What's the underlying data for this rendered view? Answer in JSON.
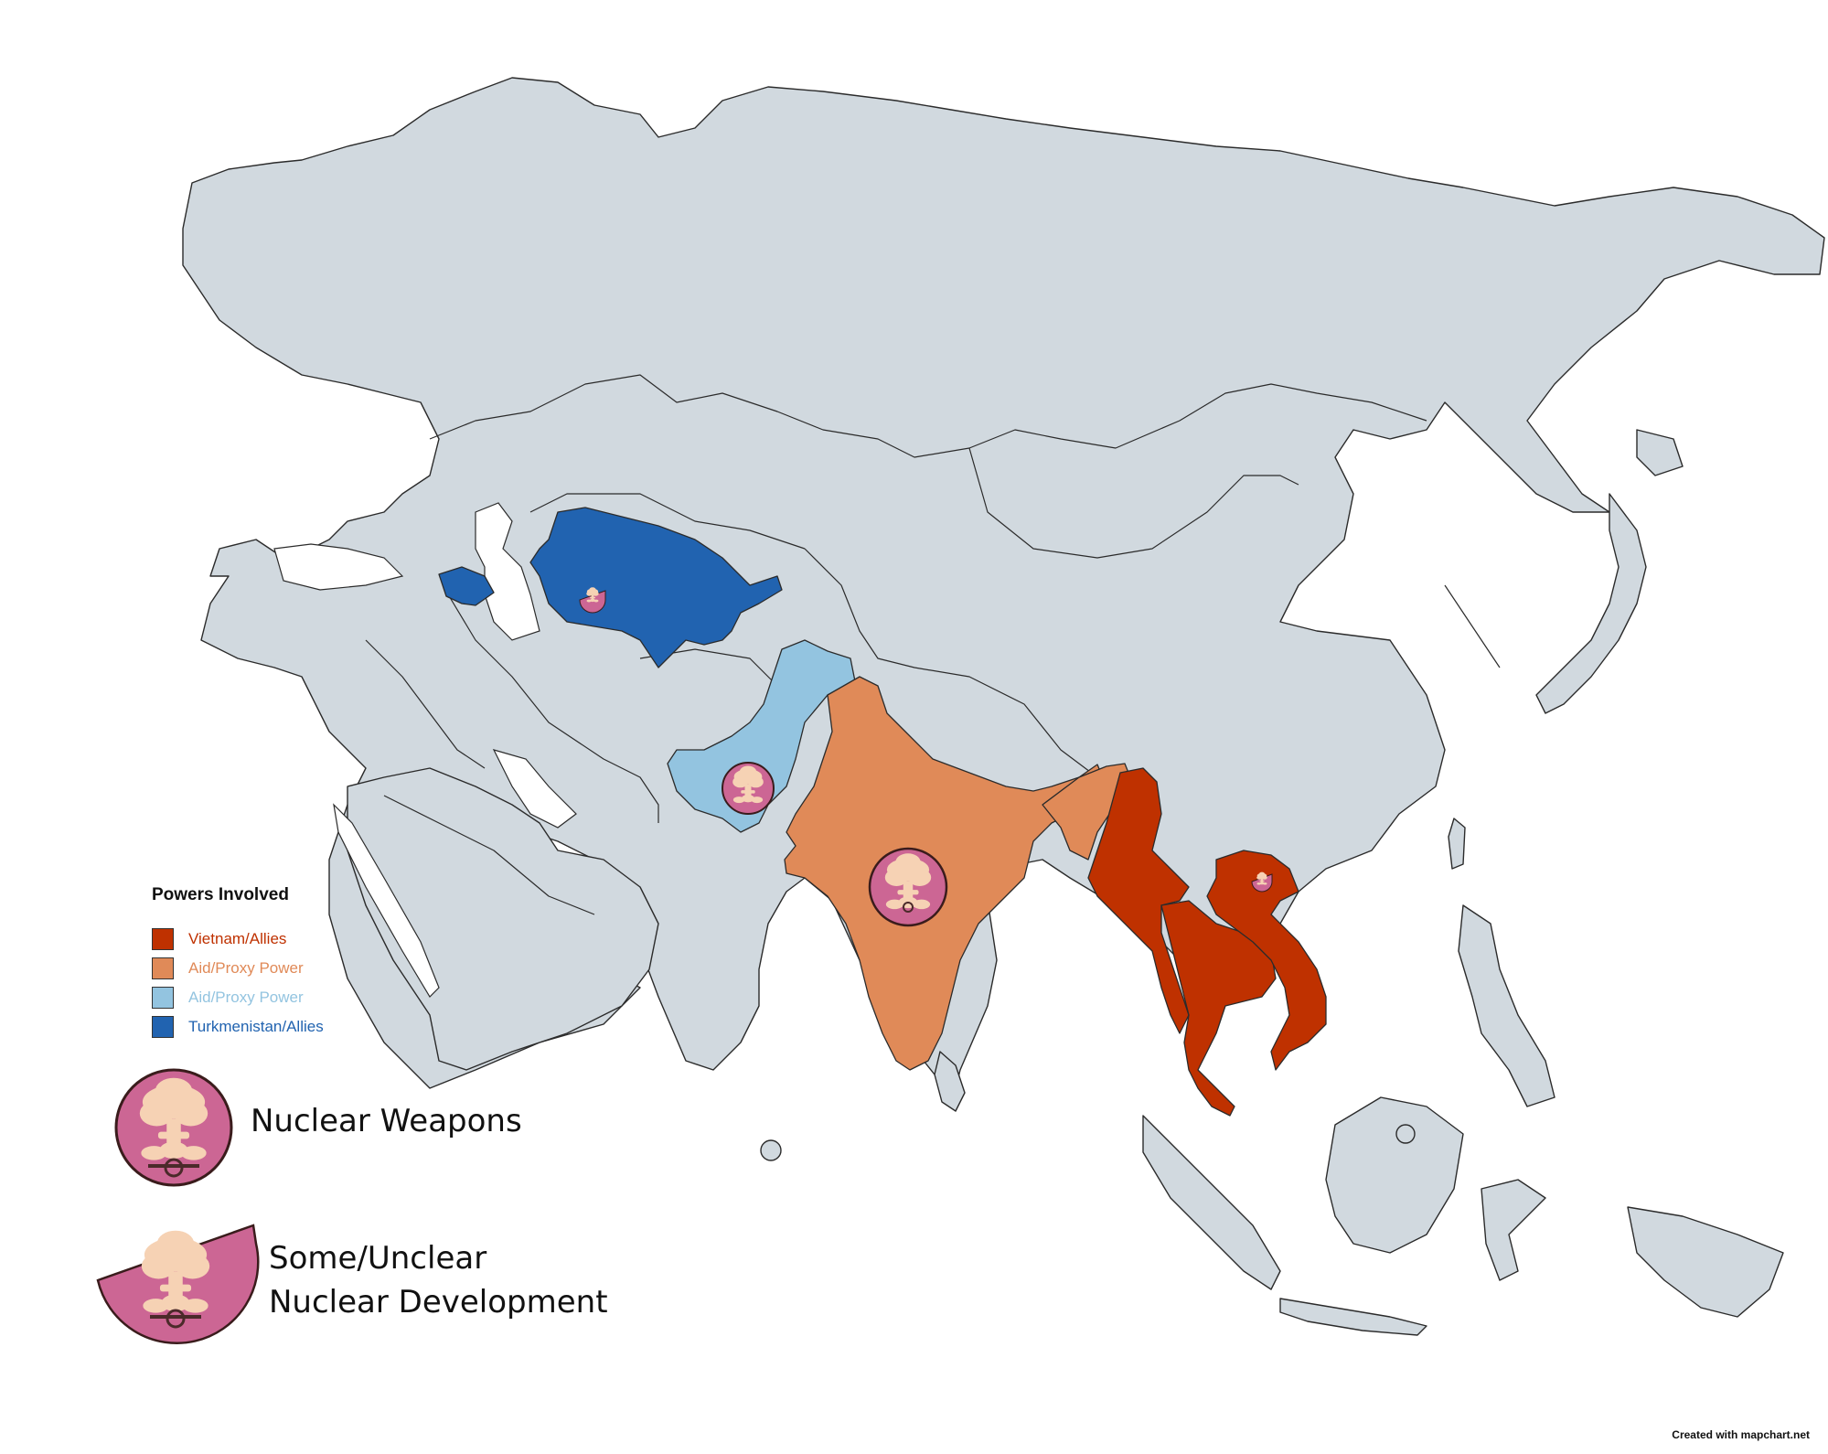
{
  "legend": {
    "title": "Powers Involved",
    "items": [
      {
        "label": "Vietnam/Allies",
        "color": "#bf3100"
      },
      {
        "label": "Aid/Proxy Power",
        "color": "#e08a58"
      },
      {
        "label": "Aid/Proxy Power",
        "color": "#93c4e0"
      },
      {
        "label": "Turkmenistan/Allies",
        "color": "#2163b0"
      }
    ]
  },
  "icons": {
    "nuclear_weapons_label": "Nuclear Weapons",
    "nuclear_development_line1": "Some/Unclear",
    "nuclear_development_line2": "Nuclear Development",
    "badge_color": "#cc6694",
    "cloud_color": "#f6d2b4"
  },
  "map": {
    "base_land_color": "#d1d9df",
    "ocean_color": "#ffffff"
  },
  "credit": "Created with mapchart.net"
}
